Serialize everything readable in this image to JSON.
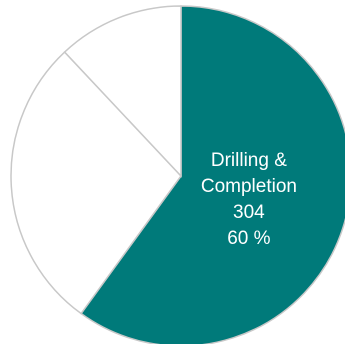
{
  "chart_data": {
    "type": "pie",
    "slices": [
      {
        "label_lines": [
          "Drilling &",
          "Completion"
        ],
        "value": 304,
        "value_label": "304",
        "percent_label": "60 %",
        "percent": 60,
        "color": "#007a7a"
      },
      {
        "label_lines": [],
        "value_label": "",
        "percent_label": "",
        "percent": 28,
        "color": "#ffffff"
      },
      {
        "label_lines": [],
        "value_label": "",
        "percent_label": "",
        "percent": 12,
        "color": "#ffffff"
      }
    ],
    "stroke_color": "#c8c8c8",
    "legend": "none"
  }
}
